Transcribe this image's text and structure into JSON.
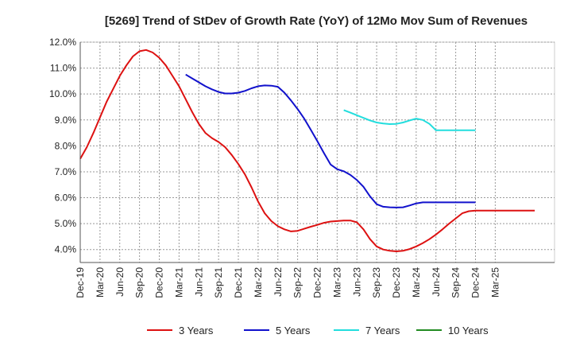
{
  "chart_data": {
    "type": "line",
    "title": "[5269]  Trend of StDev of Growth Rate (YoY) of 12Mo Mov Sum of Revenues",
    "xlabel": "",
    "ylabel": "",
    "ylim": [
      3.5,
      12.0
    ],
    "y_ticks": [
      4.0,
      5.0,
      6.0,
      7.0,
      8.0,
      9.0,
      10.0,
      11.0,
      12.0
    ],
    "y_tick_labels": [
      "4.0%",
      "5.0%",
      "6.0%",
      "7.0%",
      "8.0%",
      "9.0%",
      "10.0%",
      "11.0%",
      "12.0%"
    ],
    "x_range_months": [
      0,
      72
    ],
    "x_tick_labels": [
      "Dec-19",
      "Mar-20",
      "Jun-20",
      "Sep-20",
      "Dec-20",
      "Mar-21",
      "Jun-21",
      "Sep-21",
      "Dec-21",
      "Mar-22",
      "Jun-22",
      "Sep-22",
      "Dec-22",
      "Mar-23",
      "Jun-23",
      "Sep-23",
      "Dec-23",
      "Mar-24",
      "Jun-24",
      "Sep-24",
      "Dec-24",
      "Mar-25"
    ],
    "grid": true,
    "legend_position": "bottom",
    "series": [
      {
        "name": "3 Years",
        "color": "#dd1111",
        "x": [
          0,
          1,
          2,
          3,
          4,
          5,
          6,
          7,
          8,
          9,
          10,
          11,
          12,
          13,
          14,
          15,
          16,
          17,
          18,
          19,
          20,
          21,
          22,
          23,
          24,
          25,
          26,
          27,
          28,
          29,
          30,
          31,
          32,
          33,
          34,
          35,
          36,
          37,
          38,
          39,
          40,
          41,
          42,
          43,
          44,
          45,
          46,
          47,
          48,
          49,
          50,
          51,
          52,
          53,
          54,
          55,
          56,
          57,
          58,
          59,
          60,
          61,
          62,
          63,
          64,
          65,
          66,
          67,
          68,
          69
        ],
        "values": [
          7.5,
          7.95,
          8.5,
          9.1,
          9.7,
          10.2,
          10.7,
          11.1,
          11.45,
          11.65,
          11.7,
          11.6,
          11.4,
          11.1,
          10.7,
          10.3,
          9.8,
          9.3,
          8.85,
          8.5,
          8.3,
          8.15,
          7.95,
          7.65,
          7.3,
          6.9,
          6.4,
          5.85,
          5.4,
          5.1,
          4.9,
          4.78,
          4.7,
          4.72,
          4.8,
          4.88,
          4.95,
          5.03,
          5.08,
          5.1,
          5.12,
          5.12,
          5.05,
          4.78,
          4.4,
          4.12,
          4.0,
          3.95,
          3.93,
          3.95,
          4.02,
          4.12,
          4.25,
          4.4,
          4.58,
          4.78,
          5.0,
          5.2,
          5.4,
          5.48,
          5.5,
          5.5,
          5.5,
          5.5,
          5.5,
          5.5,
          5.5,
          5.5,
          5.5,
          5.5
        ]
      },
      {
        "name": "5 Years",
        "color": "#1111cc",
        "x": [
          16,
          17,
          18,
          19,
          20,
          21,
          22,
          23,
          24,
          25,
          26,
          27,
          28,
          29,
          30,
          31,
          32,
          33,
          34,
          35,
          36,
          37,
          38,
          39,
          40,
          41,
          42,
          43,
          44,
          45,
          46,
          47,
          48,
          49,
          50,
          51,
          52,
          53,
          54,
          55,
          56,
          57,
          58,
          59,
          60
        ],
        "values": [
          10.75,
          10.6,
          10.45,
          10.3,
          10.18,
          10.08,
          10.02,
          10.02,
          10.05,
          10.12,
          10.22,
          10.3,
          10.33,
          10.32,
          10.28,
          10.05,
          9.75,
          9.42,
          9.05,
          8.62,
          8.18,
          7.72,
          7.28,
          7.1,
          7.02,
          6.88,
          6.68,
          6.42,
          6.05,
          5.75,
          5.65,
          5.63,
          5.62,
          5.63,
          5.7,
          5.78,
          5.82,
          5.82,
          5.82,
          5.82,
          5.82,
          5.82,
          5.82,
          5.82,
          5.82
        ]
      },
      {
        "name": "7 Years",
        "color": "#22dddd",
        "x": [
          40,
          41,
          42,
          43,
          44,
          45,
          46,
          47,
          48,
          49,
          50,
          51,
          52,
          53,
          54,
          55,
          56,
          57,
          58,
          59,
          60
        ],
        "values": [
          9.38,
          9.28,
          9.18,
          9.08,
          8.98,
          8.9,
          8.86,
          8.84,
          8.85,
          8.9,
          8.98,
          9.05,
          9.0,
          8.85,
          8.6,
          8.6,
          8.6,
          8.6,
          8.6,
          8.6,
          8.6
        ]
      },
      {
        "name": "10 Years",
        "color": "#228b22",
        "x": [],
        "values": []
      }
    ]
  }
}
